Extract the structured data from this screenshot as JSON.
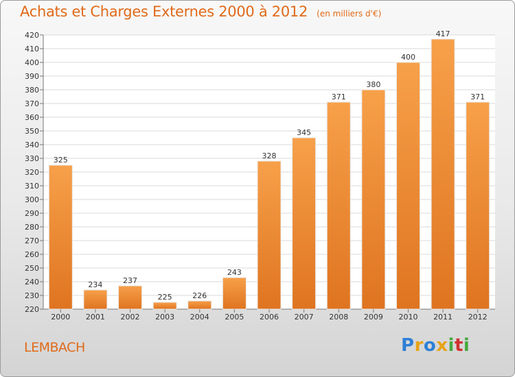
{
  "title": "Achats et Charges Externes 2000 à 2012",
  "unit_note": "(en milliers d'€)",
  "place": "LEMBACH",
  "brand": {
    "letters": [
      "P",
      "r",
      "o",
      "x",
      "i",
      "t",
      "i"
    ],
    "colors": [
      "#2e7fd6",
      "#e8a317",
      "#2e7fd6",
      "#e8a317",
      "#47a83e",
      "#d03030",
      "#47a83e"
    ]
  },
  "colors": {
    "bar": "#f08a2c",
    "accent": "#e06a1a"
  },
  "chart_data": {
    "type": "bar",
    "title": "Achats et Charges Externes 2000 à 2012",
    "subtitle": "(en milliers d'€)",
    "xlabel": "",
    "ylabel": "",
    "categories": [
      "2000",
      "2001",
      "2002",
      "2003",
      "2004",
      "2005",
      "2006",
      "2007",
      "2008",
      "2009",
      "2010",
      "2011",
      "2012"
    ],
    "values": [
      325,
      234,
      237,
      225,
      226,
      243,
      328,
      345,
      371,
      380,
      400,
      417,
      371
    ],
    "ylim": [
      220,
      420
    ],
    "ytick_step": 10,
    "grid": true,
    "data_labels": true
  }
}
